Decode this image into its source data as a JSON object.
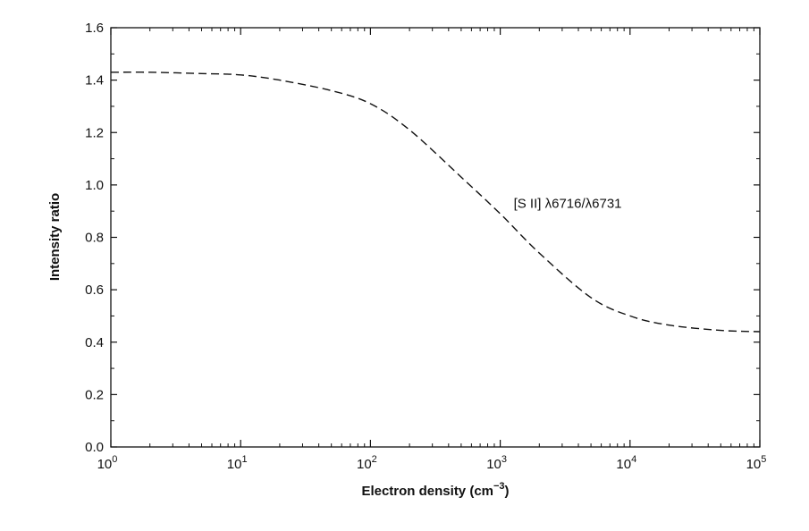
{
  "chart_data": {
    "type": "line",
    "xscale": "log",
    "xlim": [
      1,
      100000
    ],
    "ylim": [
      0.0,
      1.6
    ],
    "xlabel": "Electron density (cm",
    "xlabel_superscript": "−3",
    "xlabel_suffix": ")",
    "ylabel": "Intensity ratio",
    "x_ticks": [
      {
        "value": 1,
        "base": "10",
        "exp": "0"
      },
      {
        "value": 10,
        "base": "10",
        "exp": "1"
      },
      {
        "value": 100,
        "base": "10",
        "exp": "2"
      },
      {
        "value": 1000,
        "base": "10",
        "exp": "3"
      },
      {
        "value": 10000,
        "base": "10",
        "exp": "4"
      },
      {
        "value": 100000,
        "base": "10",
        "exp": "5"
      }
    ],
    "y_ticks": [
      "0.0",
      "0.2",
      "0.4",
      "0.6",
      "0.8",
      "1.0",
      "1.2",
      "1.4",
      "1.6"
    ],
    "annotations": [
      {
        "text": "[S II] λ6716/λ6731",
        "x": 1000,
        "y": 0.93
      }
    ],
    "grid": false,
    "series": [
      {
        "line_style": "dashed",
        "color": "#111111",
        "x": [
          1,
          2,
          5,
          10,
          20,
          50,
          100,
          200,
          500,
          1000,
          2000,
          5000,
          10000,
          20000,
          50000,
          100000
        ],
        "y": [
          1.43,
          1.43,
          1.425,
          1.42,
          1.4,
          1.36,
          1.31,
          1.21,
          1.03,
          0.89,
          0.74,
          0.57,
          0.5,
          0.465,
          0.445,
          0.44
        ]
      }
    ]
  }
}
